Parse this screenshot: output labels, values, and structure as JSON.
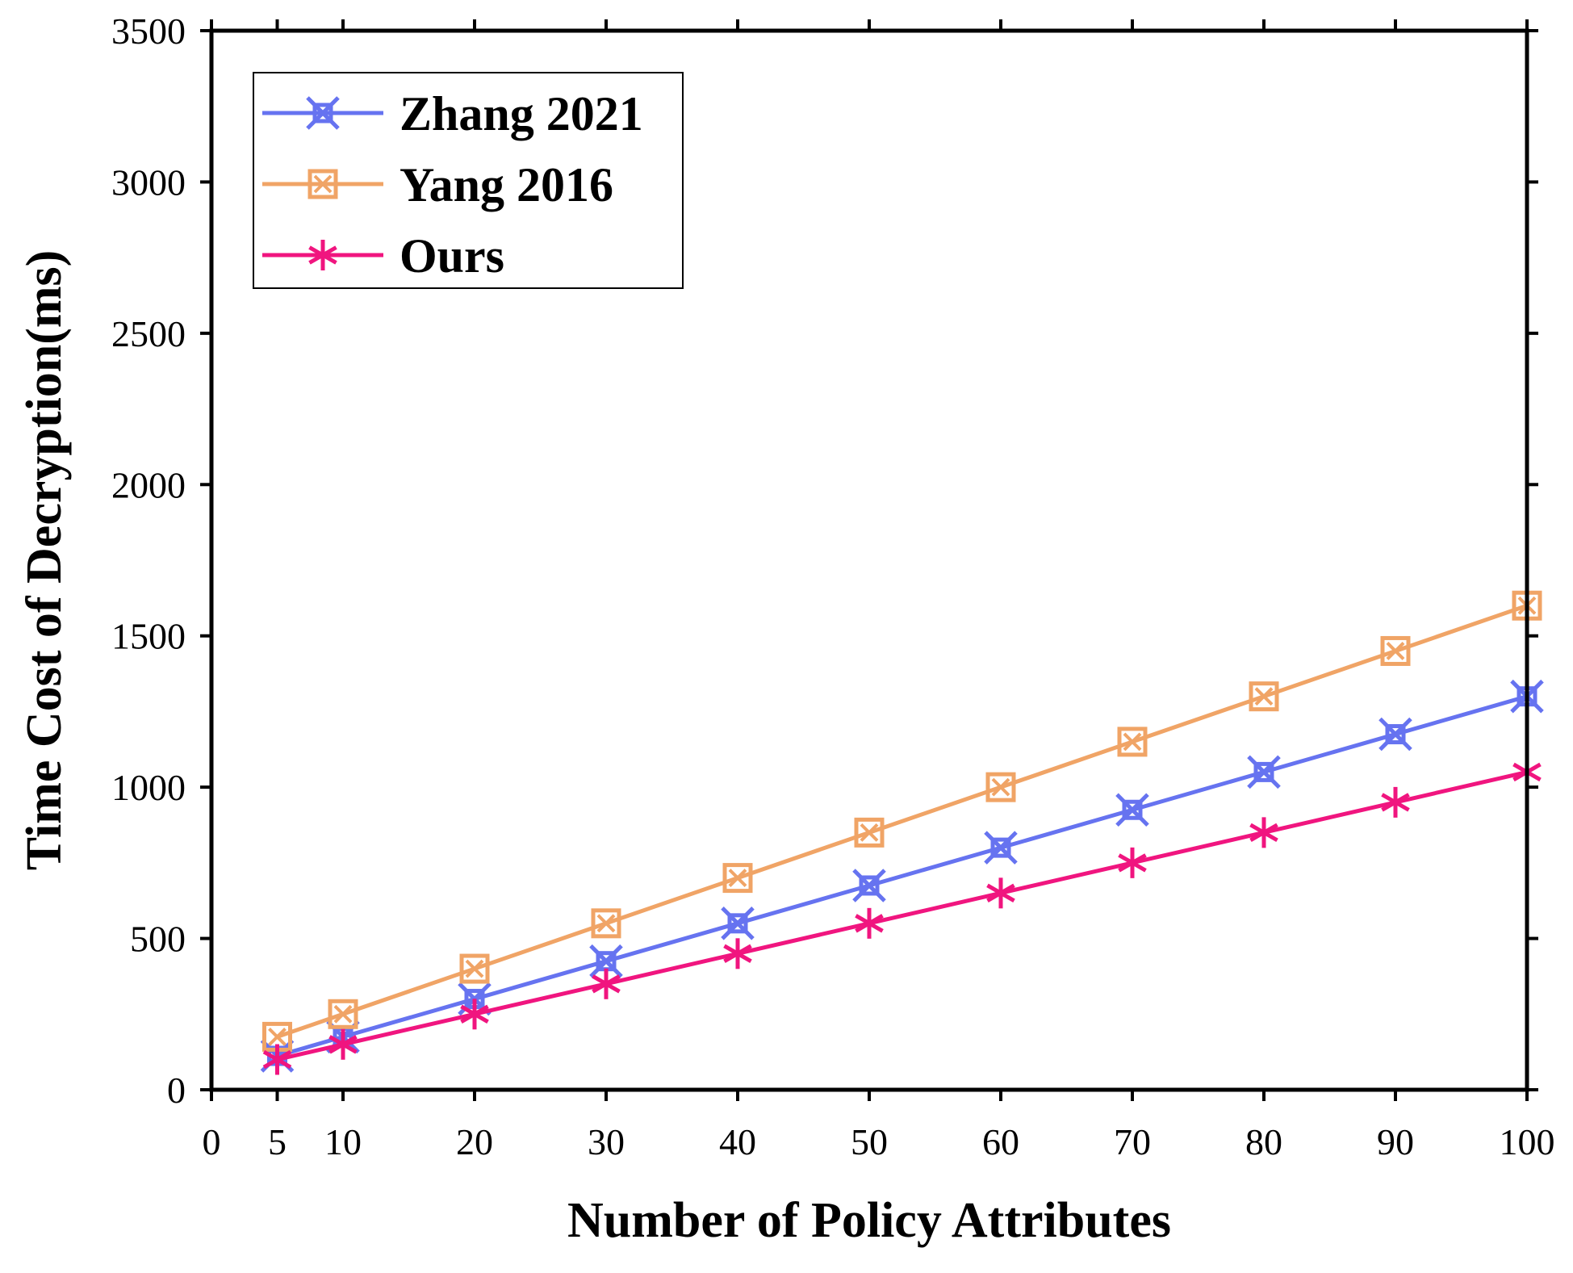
{
  "chart_data": {
    "type": "line",
    "title": "",
    "xlabel": "Number of Policy Attributes",
    "ylabel": "Time Cost of Decryption(ms)",
    "xlim": [
      0,
      100
    ],
    "ylim": [
      0,
      3500
    ],
    "xticks": [
      0,
      5,
      10,
      20,
      30,
      40,
      50,
      60,
      70,
      80,
      90,
      100
    ],
    "yticks": [
      0,
      500,
      1000,
      1500,
      2000,
      2500,
      3000,
      3500
    ],
    "x": [
      5,
      10,
      20,
      30,
      40,
      50,
      60,
      70,
      80,
      90,
      100
    ],
    "legend_position": "top-left",
    "grid": false,
    "series": [
      {
        "name": "Zhang 2021",
        "color": "#6673f0",
        "marker": "x-square",
        "values": [
          112,
          175,
          300,
          425,
          550,
          675,
          800,
          925,
          1050,
          1175,
          1300
        ]
      },
      {
        "name": "Yang 2016",
        "color": "#f0a466",
        "marker": "square-x",
        "values": [
          175,
          250,
          400,
          550,
          700,
          850,
          1000,
          1150,
          1300,
          1450,
          1600
        ]
      },
      {
        "name": "Ours",
        "color": "#f0157f",
        "marker": "asterisk",
        "values": [
          100,
          150,
          250,
          350,
          450,
          550,
          650,
          750,
          850,
          950,
          1050
        ]
      }
    ]
  }
}
